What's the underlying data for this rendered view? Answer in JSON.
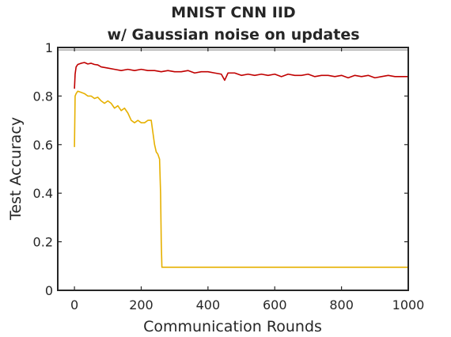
{
  "chart_data": {
    "type": "line",
    "title": [
      "MNIST CNN IID",
      "w/ Gaussian noise on updates"
    ],
    "xlabel": "Communication Rounds",
    "ylabel": "Test Accuracy",
    "xlim": [
      -50,
      1000
    ],
    "ylim": [
      0,
      1
    ],
    "xticks": [
      "0",
      "200",
      "400",
      "600",
      "800",
      "1000"
    ],
    "xtick_values": [
      0,
      200,
      400,
      600,
      800,
      1000
    ],
    "yticks": [
      "0",
      "0.2",
      "0.4",
      "0.6",
      "0.8",
      "1"
    ],
    "ytick_values": [
      0,
      0.2,
      0.4,
      0.6,
      0.8,
      1
    ],
    "grid": false,
    "reference_line": {
      "y": 0.99,
      "color": "#a6a6a6"
    },
    "series": [
      {
        "color": "#c00000",
        "x": [
          0,
          2,
          5,
          10,
          20,
          30,
          40,
          50,
          60,
          70,
          80,
          100,
          120,
          140,
          160,
          180,
          200,
          220,
          240,
          260,
          280,
          300,
          320,
          340,
          360,
          380,
          400,
          420,
          440,
          450,
          460,
          480,
          500,
          520,
          540,
          560,
          580,
          600,
          620,
          640,
          660,
          680,
          700,
          720,
          740,
          760,
          780,
          800,
          820,
          840,
          860,
          880,
          900,
          920,
          940,
          960,
          980,
          1000
        ],
        "y": [
          0.83,
          0.89,
          0.92,
          0.93,
          0.935,
          0.938,
          0.932,
          0.935,
          0.93,
          0.928,
          0.92,
          0.915,
          0.91,
          0.905,
          0.91,
          0.905,
          0.91,
          0.905,
          0.905,
          0.9,
          0.905,
          0.9,
          0.9,
          0.905,
          0.895,
          0.9,
          0.9,
          0.895,
          0.89,
          0.865,
          0.895,
          0.895,
          0.885,
          0.89,
          0.885,
          0.89,
          0.885,
          0.89,
          0.88,
          0.89,
          0.885,
          0.885,
          0.89,
          0.88,
          0.885,
          0.885,
          0.88,
          0.885,
          0.875,
          0.885,
          0.88,
          0.885,
          0.875,
          0.88,
          0.885,
          0.88,
          0.88,
          0.88
        ]
      },
      {
        "color": "#e6b000",
        "x": [
          0,
          2,
          5,
          10,
          20,
          30,
          40,
          50,
          60,
          70,
          80,
          90,
          100,
          110,
          120,
          130,
          140,
          150,
          160,
          170,
          180,
          190,
          200,
          210,
          220,
          230,
          240,
          245,
          250,
          255,
          258,
          260,
          262,
          265,
          280,
          300,
          400,
          500,
          600,
          700,
          800,
          900,
          1000
        ],
        "y": [
          0.59,
          0.8,
          0.81,
          0.82,
          0.815,
          0.81,
          0.8,
          0.8,
          0.79,
          0.795,
          0.78,
          0.77,
          0.78,
          0.77,
          0.75,
          0.76,
          0.74,
          0.75,
          0.73,
          0.7,
          0.69,
          0.7,
          0.69,
          0.69,
          0.7,
          0.7,
          0.6,
          0.57,
          0.56,
          0.54,
          0.4,
          0.2,
          0.095,
          0.095,
          0.095,
          0.095,
          0.095,
          0.095,
          0.095,
          0.095,
          0.095,
          0.095,
          0.095
        ]
      }
    ]
  }
}
